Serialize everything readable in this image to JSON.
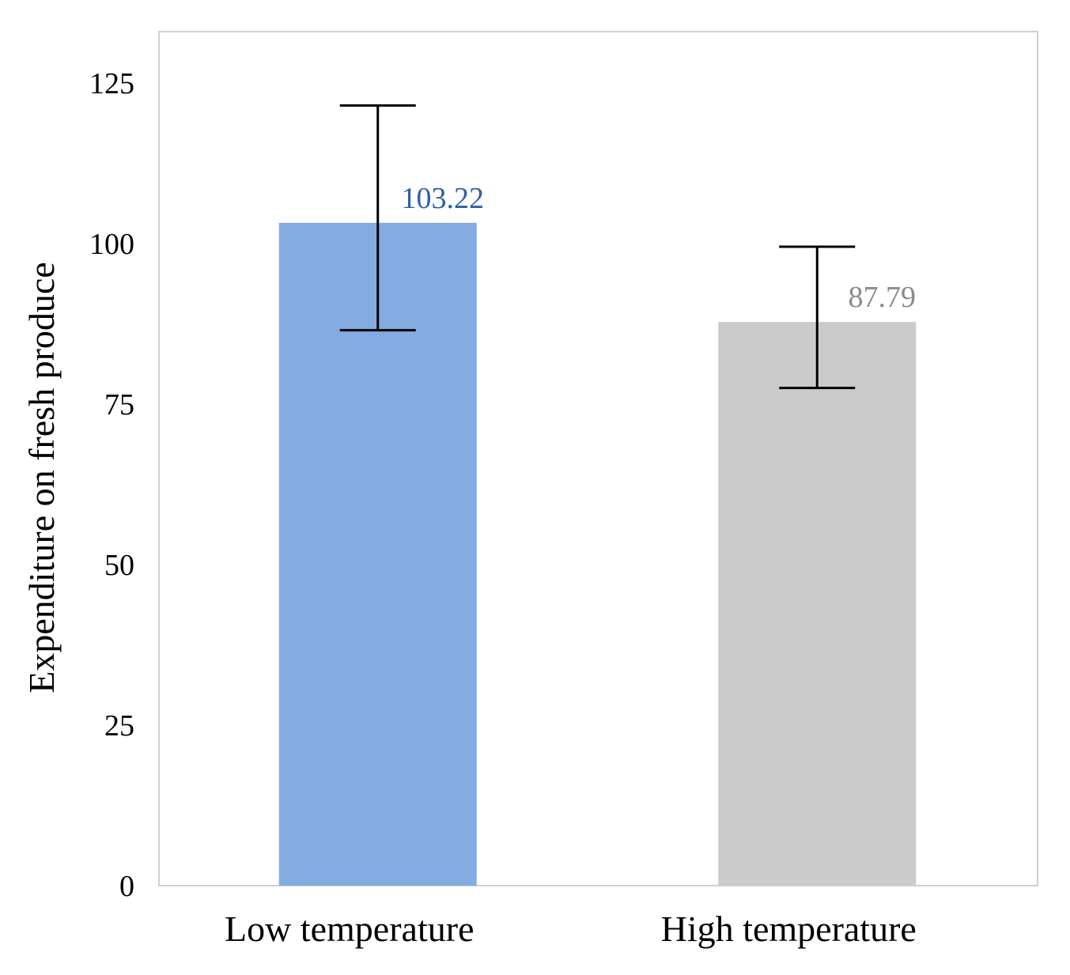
{
  "chart_data": {
    "type": "bar",
    "title": "",
    "xlabel": "",
    "ylabel": "Expenditure on fresh produce",
    "ylim": [
      0,
      133
    ],
    "yticks": [
      0,
      25,
      50,
      75,
      100,
      125
    ],
    "grid": false,
    "legend": "none",
    "categories": [
      "Low temperature",
      "High temperature"
    ],
    "values": [
      103.22,
      87.79
    ],
    "value_labels": [
      "103.22",
      "87.79"
    ],
    "error_bars": [
      {
        "low": 86.5,
        "high": 121.5
      },
      {
        "low": 77.5,
        "high": 99.5
      }
    ],
    "colors": [
      "#84ace0",
      "#cbcbcb"
    ],
    "label_colors": [
      "#2e5fa6",
      "#8a8a8a"
    ]
  }
}
